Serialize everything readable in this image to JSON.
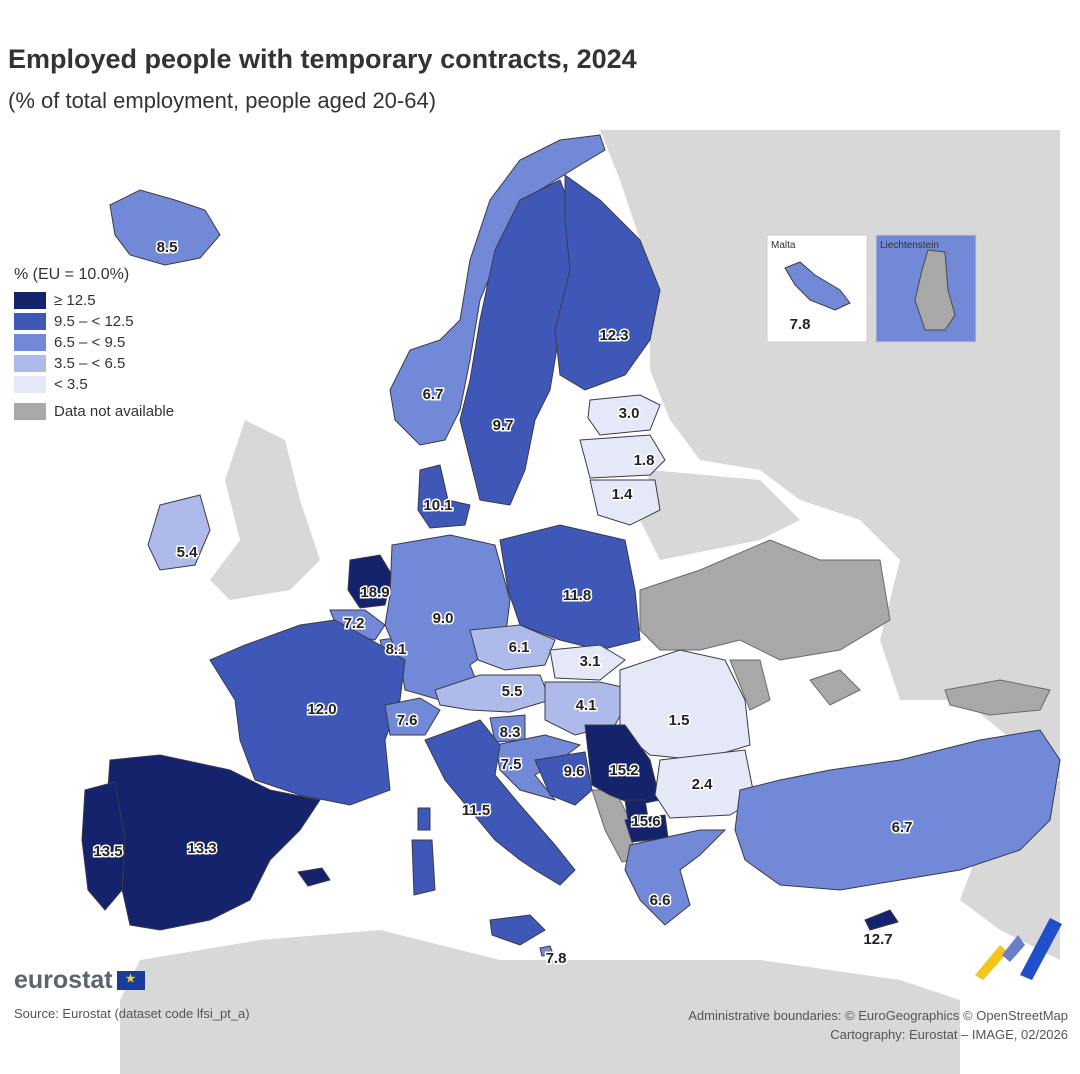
{
  "title": "Employed people with temporary contracts, 2024",
  "subtitle": "(% of total employment, people aged 20-64)",
  "legend": {
    "title": "% (EU = 10.0%)",
    "classes": [
      {
        "label": "≥ 12.5",
        "color": "#14236b"
      },
      {
        "label": "9.5 – < 12.5",
        "color": "#3f58b8"
      },
      {
        "label": "6.5 – < 9.5",
        "color": "#7189d6"
      },
      {
        "label": "3.5 – < 6.5",
        "color": "#aebbea"
      },
      {
        "label": "< 3.5",
        "color": "#e4e8f7"
      }
    ],
    "not_available": {
      "label": "Data not available",
      "color": "#a8a8a8"
    }
  },
  "colors": {
    "background_land": "#d8d8d8",
    "sea": "#ffffff",
    "not_available": "#a8a8a8",
    "brand_accent": "#f5c518"
  },
  "values": {
    "iceland": "8.5",
    "norway": "6.7",
    "sweden": "9.7",
    "finland": "12.3",
    "estonia": "3.0",
    "latvia": "1.8",
    "lithuania": "1.4",
    "denmark": "10.1",
    "ireland": "5.4",
    "netherlands": "18.9",
    "belgium": "7.2",
    "luxembourg": "8.1",
    "germany": "9.0",
    "poland": "11.8",
    "czechia": "6.1",
    "slovakia": "3.1",
    "austria": "5.5",
    "hungary": "4.1",
    "romania": "1.5",
    "france": "12.0",
    "switzerland": "7.6",
    "slovenia": "8.3",
    "croatia": "7.5",
    "bosnia": "9.6",
    "serbia": "15.2",
    "bulgaria": "2.4",
    "north_macedonia": "15.6",
    "italy": "11.5",
    "greece": "6.6",
    "turkey": "6.7",
    "spain": "13.3",
    "portugal": "13.5",
    "malta": "7.8",
    "cyprus": "12.7",
    "malta_main": "7.8"
  },
  "inset_labels": {
    "malta": "Malta",
    "liechtenstein": "Liechtenstein"
  },
  "footer": {
    "brand": "eurostat",
    "source": "Source: Eurostat (dataset code lfsi_pt_a)",
    "credit_line1": "Administrative boundaries: © EuroGeographics © OpenStreetMap",
    "credit_line2": "Cartography: Eurostat – IMAGE, 02/2026"
  }
}
